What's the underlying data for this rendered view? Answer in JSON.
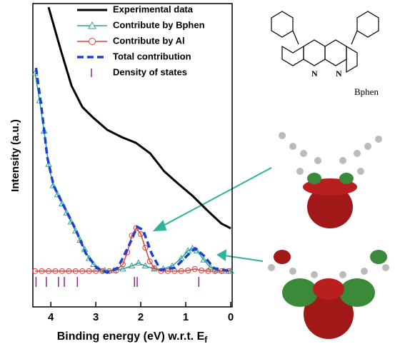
{
  "chart_data": {
    "type": "line",
    "x_label": {
      "text": "Binding energy (eV) w.r.t. E",
      "subscript": "f"
    },
    "y_label": "Intensity (a.u.)",
    "xlim": [
      4.4,
      0
    ],
    "xticks": [
      4,
      3,
      2,
      1,
      0
    ],
    "ylim": [
      0,
      100
    ],
    "annotations": [
      "N",
      "N",
      "Bphen"
    ],
    "series": [
      {
        "name": "Experimental data",
        "color": "#000000",
        "marker": null,
        "dash": false,
        "x": [
          4.05,
          3.78,
          3.54,
          3.3,
          3.06,
          2.75,
          2.43,
          2.11,
          1.79,
          1.48,
          1.16,
          0.84,
          0.52,
          0.21,
          0
        ],
        "values": [
          98.8,
          84.7,
          72.9,
          65.9,
          62.4,
          58.4,
          56,
          54.1,
          50.6,
          44.7,
          40.5,
          36.5,
          31.8,
          27.5,
          25.9
        ]
      },
      {
        "name": "Contribute by Bphen",
        "color": "#2aa198",
        "marker": "triangle",
        "dash": false,
        "x": [
          4.35,
          4.25,
          4.15,
          4.05,
          3.95,
          3.85,
          3.75,
          3.65,
          3.55,
          3.45,
          3.35,
          3.25,
          3.15,
          3.05,
          2.95,
          2.8,
          2.6,
          2.4,
          2.2,
          2.05,
          1.9,
          1.7,
          1.5,
          1.3,
          1.1,
          0.95,
          0.85,
          0.75,
          0.6,
          0.45,
          0.3,
          0.15,
          0
        ],
        "values": [
          77,
          68,
          58,
          47,
          40,
          37,
          34,
          31,
          28,
          25,
          22,
          19,
          16,
          14,
          12.5,
          12,
          12,
          12.5,
          13.5,
          14.5,
          13.5,
          12.5,
          12.5,
          13.5,
          16,
          18.5,
          19.3,
          18.5,
          15.5,
          13,
          12,
          11.8,
          11.8
        ]
      },
      {
        "name": "Contribute by Al",
        "color": "#e0403a",
        "marker": "circle",
        "dash": false,
        "x": [
          4.35,
          4.2,
          4.05,
          3.9,
          3.75,
          3.6,
          3.45,
          3.3,
          3.15,
          3,
          2.85,
          2.7,
          2.55,
          2.4,
          2.3,
          2.2,
          2.1,
          2,
          1.9,
          1.8,
          1.7,
          1.55,
          1.4,
          1.25,
          1.1,
          0.95,
          0.8,
          0.65,
          0.5,
          0.35,
          0.2,
          0.05
        ],
        "values": [
          11.8,
          11.8,
          11.8,
          11.8,
          11.8,
          11.8,
          11.8,
          11.8,
          11.8,
          11.8,
          11.8,
          11.8,
          12,
          14,
          18,
          23.5,
          26,
          24,
          19.5,
          15,
          12.8,
          11.8,
          11.8,
          11.8,
          11.8,
          12,
          12.5,
          12,
          11.8,
          11.8,
          11.8,
          11.8
        ]
      },
      {
        "name": "Total contribution",
        "color": "#1f3fd0",
        "marker": null,
        "dash": true,
        "x": [
          4.33,
          4.21,
          4.08,
          3.94,
          3.7,
          3.46,
          3.22,
          2.98,
          2.75,
          2.51,
          2.27,
          2.08,
          1.95,
          1.76,
          1.56,
          1.24,
          0.97,
          0.79,
          0.6,
          0.37,
          0
        ],
        "values": [
          78.8,
          65.9,
          49.4,
          40,
          32.9,
          25.9,
          17.6,
          12.9,
          11.3,
          12.9,
          20,
          26.4,
          25.4,
          17.6,
          12.2,
          12.9,
          16.9,
          19.3,
          16.9,
          12.7,
          11.8
        ]
      },
      {
        "name": "Density of states",
        "color": "#8b2a8b",
        "marker": "stick",
        "dash": false,
        "x": [
          4.33,
          4.1,
          3.83,
          3.7,
          3.41,
          2.14,
          2.08,
          0.71
        ]
      }
    ]
  }
}
